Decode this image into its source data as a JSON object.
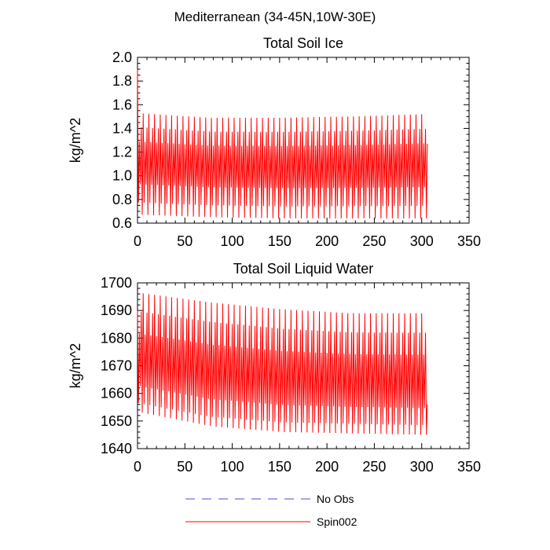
{
  "page_title": "Mediterranean (34-45N,10W-30E)",
  "colors": {
    "series": "#ff0000",
    "obs": "#4a4adc",
    "axis": "#000000"
  },
  "chart_data": [
    {
      "type": "line",
      "title": "Total Soil Ice",
      "xlabel": "",
      "ylabel": "kg/m^2",
      "xlim": [
        0,
        350
      ],
      "ylim": [
        0.6,
        2.0
      ],
      "x_ticks": [
        "0",
        "50",
        "100",
        "150",
        "200",
        "250",
        "300",
        "350"
      ],
      "y_ticks": [
        "0.6",
        "0.8",
        "1.0",
        "1.2",
        "1.4",
        "1.6",
        "1.8",
        "2.0"
      ],
      "cycles": 51,
      "cycle_months": 6,
      "first_point": 1.9,
      "last_point": 1.27,
      "series": [
        {
          "name": "Spin002",
          "color": "#ff0000",
          "cycle_min": [
            0.67,
            0.65,
            0.64,
            0.64,
            0.64
          ],
          "cycle_max": [
            1.53,
            1.49,
            1.49,
            1.5,
            1.52
          ],
          "cycle_shape": [
            1.0,
            0.12,
            0.72,
            0.3,
            0.86,
            0.0
          ]
        }
      ]
    },
    {
      "type": "line",
      "title": "Total Soil Liquid Water",
      "xlabel": "",
      "ylabel": "kg/m^2",
      "xlim": [
        0,
        350
      ],
      "ylim": [
        1640,
        1700
      ],
      "x_ticks": [
        "0",
        "50",
        "100",
        "150",
        "200",
        "250",
        "300",
        "350"
      ],
      "y_ticks": [
        "1640",
        "1650",
        "1660",
        "1670",
        "1680",
        "1690",
        "1700"
      ],
      "cycles": 51,
      "cycle_months": 6,
      "first_point": 1690,
      "last_point": 1656,
      "series": [
        {
          "name": "Spin002",
          "color": "#ff0000",
          "cycle_min": [
            1653,
            1648,
            1646,
            1645.5,
            1645
          ],
          "cycle_max": [
            1696.5,
            1693,
            1690.5,
            1689,
            1689
          ],
          "cycle_shape": [
            1.0,
            0.08,
            0.66,
            0.22,
            0.84,
            0.0
          ]
        }
      ]
    }
  ],
  "legend": {
    "placement": "bottom",
    "entries": [
      {
        "label": "No Obs",
        "color": "#4a4adc",
        "dash": true
      },
      {
        "label": "Spin002",
        "color": "#ff0000",
        "dash": false
      }
    ]
  }
}
